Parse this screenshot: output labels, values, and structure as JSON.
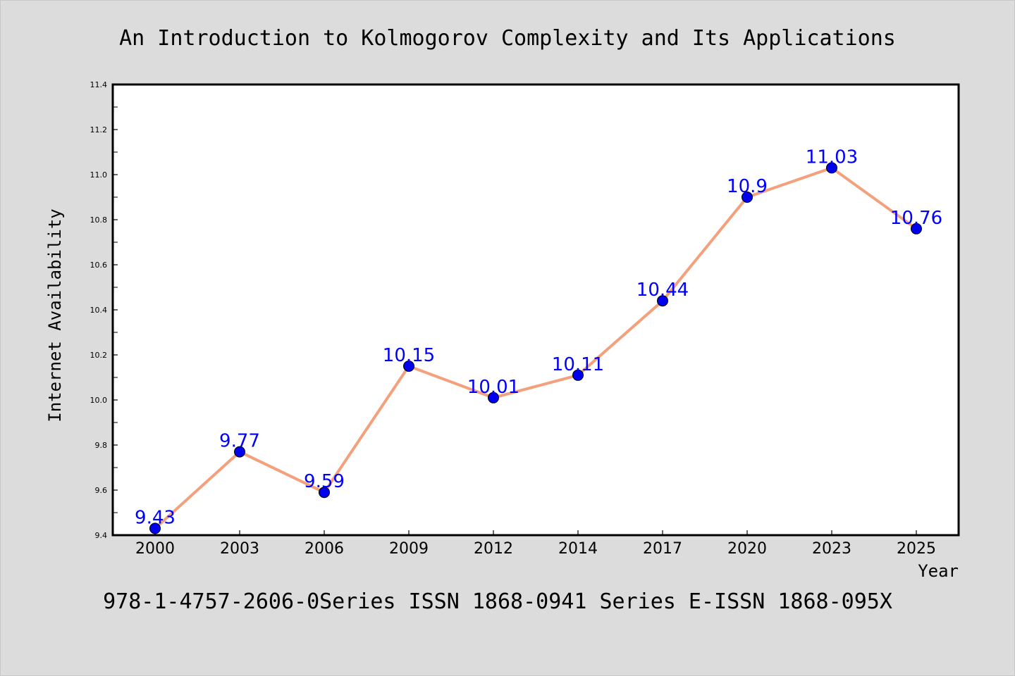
{
  "chart_data": {
    "type": "line",
    "title": "An Introduction to Kolmogorov Complexity and Its Applications",
    "subtitle": "978-1-4757-2606-0Series ISSN 1868-0941 Series E-ISSN 1868-095X",
    "xlabel": "Year",
    "ylabel": "Internet Availability",
    "categories": [
      "2000",
      "2003",
      "2006",
      "2009",
      "2012",
      "2014",
      "2017",
      "2020",
      "2023",
      "2025"
    ],
    "series": [
      {
        "values": [
          9.43,
          9.77,
          9.59,
          10.15,
          10.01,
          10.11,
          10.44,
          10.9,
          11.03,
          10.76
        ],
        "labels": [
          "9.43",
          "9.77",
          "9.59",
          "10.15",
          "10.01",
          "10.11",
          "10.44",
          "10.9",
          "11.03",
          "10.76"
        ]
      }
    ],
    "ylim": [
      9.4,
      11.4
    ],
    "yticks": [
      "9.4",
      "9.6",
      "9.8",
      "10.0",
      "10.2",
      "10.4",
      "10.6",
      "10.8",
      "11.0",
      "11.2",
      "11.4"
    ],
    "grid": false,
    "legend": "none",
    "colors": {
      "background": "#dcdcdc",
      "plot_background": "#ffffff",
      "line": "#f4a07c",
      "marker": "#0000ee",
      "marker_edge": "#000000",
      "data_label": "#0000ff",
      "text": "#000000"
    }
  }
}
